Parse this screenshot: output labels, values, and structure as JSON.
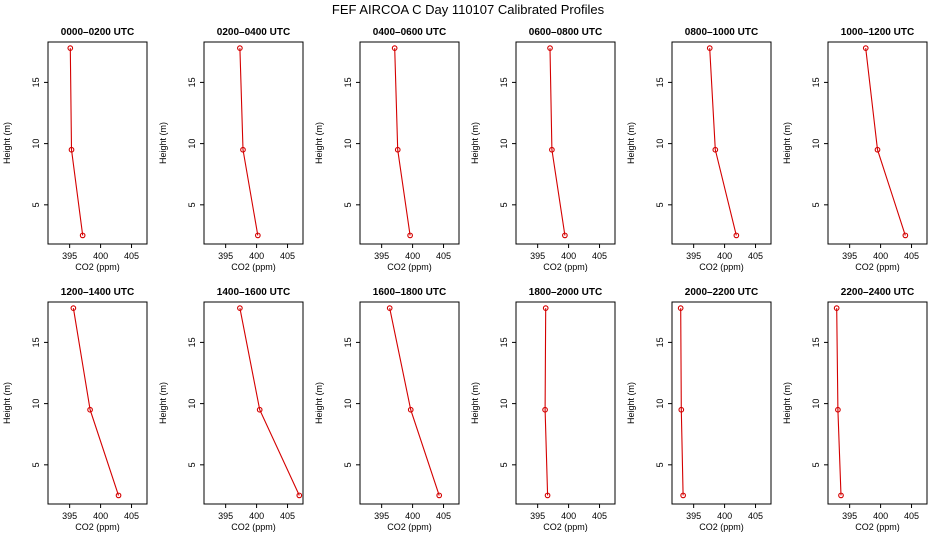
{
  "page_title": "FEF AIRCOA C  Day 110107  Calibrated Profiles",
  "colors": {
    "series": "#d40000",
    "axis": "#000000"
  },
  "chart_data": [
    {
      "type": "line",
      "title": "0000–0200 UTC",
      "xlabel": "CO2 (ppm)",
      "ylabel": "Height (m)",
      "xlim": [
        391.5,
        407.5
      ],
      "ylim": [
        1.8,
        18.3
      ],
      "xticks": [
        395,
        400,
        405
      ],
      "yticks": [
        5,
        10,
        15
      ],
      "x": [
        395.1,
        395.3,
        397.1
      ],
      "y": [
        17.8,
        9.5,
        2.5
      ]
    },
    {
      "type": "line",
      "title": "0200–0400 UTC",
      "xlabel": "CO2 (ppm)",
      "ylabel": "Height (m)",
      "xlim": [
        391.5,
        407.5
      ],
      "ylim": [
        1.8,
        18.3
      ],
      "xticks": [
        395,
        400,
        405
      ],
      "yticks": [
        5,
        10,
        15
      ],
      "x": [
        397.3,
        397.8,
        400.2
      ],
      "y": [
        17.8,
        9.5,
        2.5
      ]
    },
    {
      "type": "line",
      "title": "0400–0600 UTC",
      "xlabel": "CO2 (ppm)",
      "ylabel": "Height (m)",
      "xlim": [
        391.5,
        407.5
      ],
      "ylim": [
        1.8,
        18.3
      ],
      "xticks": [
        395,
        400,
        405
      ],
      "yticks": [
        5,
        10,
        15
      ],
      "x": [
        397.1,
        397.6,
        399.6
      ],
      "y": [
        17.8,
        9.5,
        2.5
      ]
    },
    {
      "type": "line",
      "title": "0600–0800 UTC",
      "xlabel": "CO2 (ppm)",
      "ylabel": "Height (m)",
      "xlim": [
        391.5,
        407.5
      ],
      "ylim": [
        1.8,
        18.3
      ],
      "xticks": [
        395,
        400,
        405
      ],
      "yticks": [
        5,
        10,
        15
      ],
      "x": [
        397.0,
        397.3,
        399.4
      ],
      "y": [
        17.8,
        9.5,
        2.5
      ]
    },
    {
      "type": "line",
      "title": "0800–1000 UTC",
      "xlabel": "CO2 (ppm)",
      "ylabel": "Height (m)",
      "xlim": [
        391.5,
        407.5
      ],
      "ylim": [
        1.8,
        18.3
      ],
      "xticks": [
        395,
        400,
        405
      ],
      "yticks": [
        5,
        10,
        15
      ],
      "x": [
        397.6,
        398.5,
        401.9
      ],
      "y": [
        17.8,
        9.5,
        2.5
      ]
    },
    {
      "type": "line",
      "title": "1000–1200 UTC",
      "xlabel": "CO2 (ppm)",
      "ylabel": "Height (m)",
      "xlim": [
        391.5,
        407.5
      ],
      "ylim": [
        1.8,
        18.3
      ],
      "xticks": [
        395,
        400,
        405
      ],
      "yticks": [
        5,
        10,
        15
      ],
      "x": [
        397.6,
        399.5,
        404.0
      ],
      "y": [
        17.8,
        9.5,
        2.5
      ]
    },
    {
      "type": "line",
      "title": "1200–1400 UTC",
      "xlabel": "CO2 (ppm)",
      "ylabel": "Height (m)",
      "xlim": [
        391.5,
        407.5
      ],
      "ylim": [
        1.8,
        18.3
      ],
      "xticks": [
        395,
        400,
        405
      ],
      "yticks": [
        5,
        10,
        15
      ],
      "x": [
        395.6,
        398.3,
        402.9
      ],
      "y": [
        17.8,
        9.5,
        2.5
      ]
    },
    {
      "type": "line",
      "title": "1400–1600 UTC",
      "xlabel": "CO2 (ppm)",
      "ylabel": "Height (m)",
      "xlim": [
        391.5,
        407.5
      ],
      "ylim": [
        1.8,
        18.3
      ],
      "xticks": [
        395,
        400,
        405
      ],
      "yticks": [
        5,
        10,
        15
      ],
      "x": [
        397.3,
        400.5,
        406.9
      ],
      "y": [
        17.8,
        9.5,
        2.5
      ]
    },
    {
      "type": "line",
      "title": "1600–1800 UTC",
      "xlabel": "CO2 (ppm)",
      "ylabel": "Height (m)",
      "xlim": [
        391.5,
        407.5
      ],
      "ylim": [
        1.8,
        18.3
      ],
      "xticks": [
        395,
        400,
        405
      ],
      "yticks": [
        5,
        10,
        15
      ],
      "x": [
        396.3,
        399.7,
        404.3
      ],
      "y": [
        17.8,
        9.5,
        2.5
      ]
    },
    {
      "type": "line",
      "title": "1800–2000 UTC",
      "xlabel": "CO2 (ppm)",
      "ylabel": "Height (m)",
      "xlim": [
        391.5,
        407.5
      ],
      "ylim": [
        1.8,
        18.3
      ],
      "xticks": [
        395,
        400,
        405
      ],
      "yticks": [
        5,
        10,
        15
      ],
      "x": [
        396.3,
        396.2,
        396.6
      ],
      "y": [
        17.8,
        9.5,
        2.5
      ]
    },
    {
      "type": "line",
      "title": "2000–2200 UTC",
      "xlabel": "CO2 (ppm)",
      "ylabel": "Height (m)",
      "xlim": [
        391.5,
        407.5
      ],
      "ylim": [
        1.8,
        18.3
      ],
      "xticks": [
        395,
        400,
        405
      ],
      "yticks": [
        5,
        10,
        15
      ],
      "x": [
        392.9,
        393.0,
        393.3
      ],
      "y": [
        17.8,
        9.5,
        2.5
      ]
    },
    {
      "type": "line",
      "title": "2200–2400 UTC",
      "xlabel": "CO2 (ppm)",
      "ylabel": "Height (m)",
      "xlim": [
        391.5,
        407.5
      ],
      "ylim": [
        1.8,
        18.3
      ],
      "xticks": [
        395,
        400,
        405
      ],
      "yticks": [
        5,
        10,
        15
      ],
      "x": [
        392.9,
        393.1,
        393.6
      ],
      "y": [
        17.8,
        9.5,
        2.5
      ]
    }
  ]
}
